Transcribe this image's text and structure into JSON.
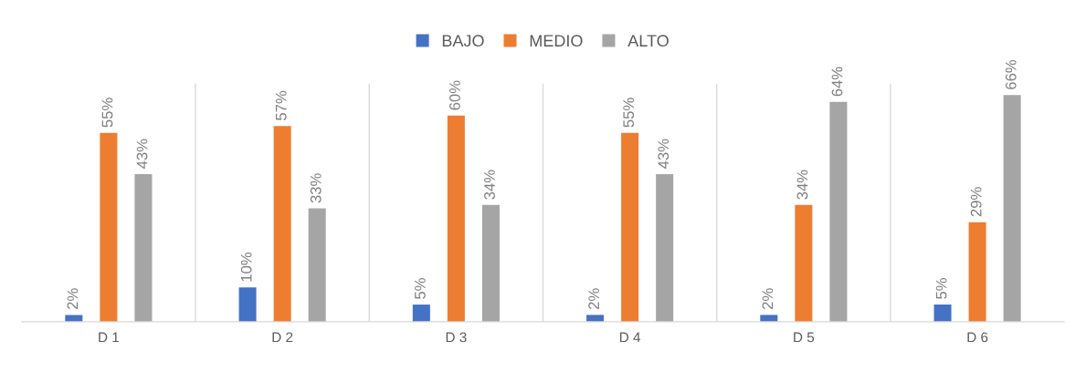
{
  "chart_data": {
    "type": "bar",
    "categories": [
      "D 1",
      "D 2",
      "D 3",
      "D 4",
      "D 5",
      "D 6"
    ],
    "series": [
      {
        "name": "BAJO",
        "color": "#4472c4",
        "values": [
          2,
          10,
          5,
          2,
          2,
          5
        ],
        "value_labels": [
          "2%",
          "10%",
          "5%",
          "2%",
          "2%",
          "5%"
        ]
      },
      {
        "name": "MEDIO",
        "color": "#ed7d31",
        "values": [
          55,
          57,
          60,
          55,
          34,
          29
        ],
        "value_labels": [
          "55%",
          "57%",
          "60%",
          "55%",
          "34%",
          "29%"
        ]
      },
      {
        "name": "ALTO",
        "color": "#a5a5a5",
        "values": [
          43,
          33,
          34,
          43,
          64,
          66
        ],
        "value_labels": [
          "43%",
          "33%",
          "34%",
          "43%",
          "64%",
          "66%"
        ]
      }
    ],
    "legend": "top",
    "grid": "x",
    "tick_labels": "x"
  }
}
